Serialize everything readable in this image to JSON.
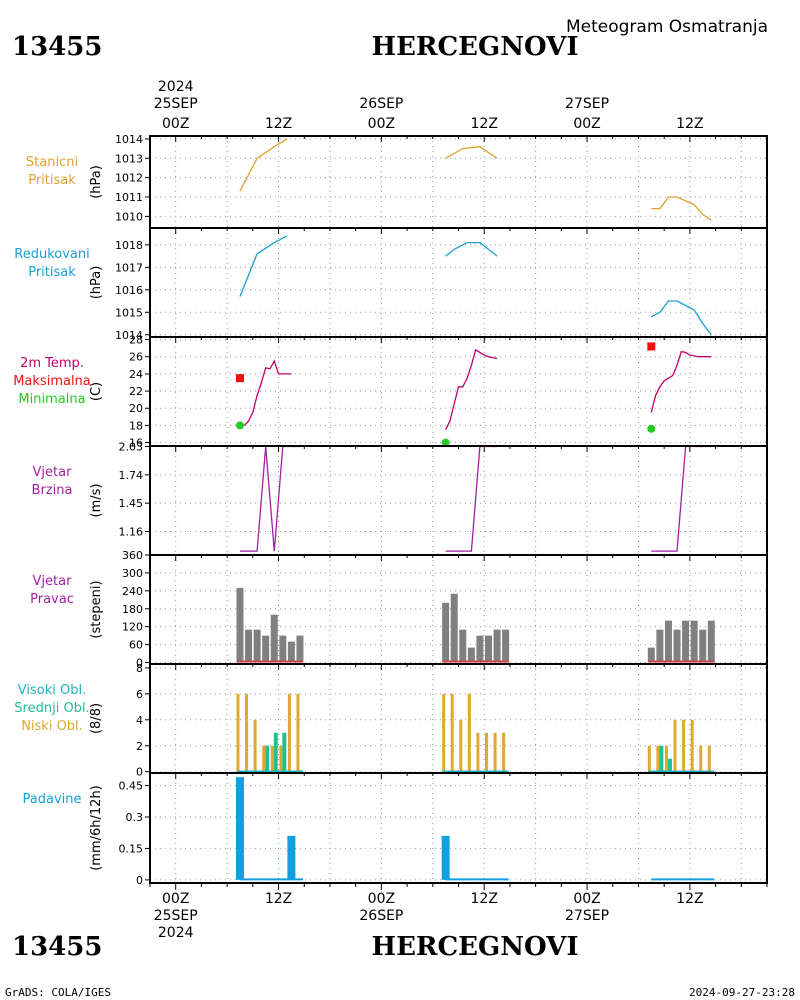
{
  "header": {
    "station_id": "13455",
    "station_name": "HERCEGNOVI",
    "subtitle": "Meteogram Osmatranja"
  },
  "top_axis": {
    "year": "2024",
    "dates": [
      "25SEP",
      "26SEP",
      "27SEP"
    ],
    "hours": [
      "00Z",
      "12Z",
      "00Z",
      "12Z",
      "00Z",
      "12Z"
    ]
  },
  "bottom_axis": {
    "year": "2024",
    "dates": [
      "25SEP",
      "26SEP",
      "27SEP"
    ],
    "hours": [
      "00Z",
      "12Z",
      "00Z",
      "12Z",
      "00Z",
      "12Z"
    ]
  },
  "footer": {
    "left": "GrADS: COLA/IGES",
    "right": "2024-09-27-23:28"
  },
  "colors": {
    "station_pressure": "#e0a030",
    "reduced_pressure": "#1a9fd0",
    "temperature": "#c0006a",
    "tmax": "#ee1010",
    "tmin": "#22cc22",
    "wind": "#a020a0",
    "wind_dir_bar": "#808080",
    "wind_dir_base": "#cc4444",
    "cloud_high": "#20b0c0",
    "cloud_mid": "#20c090",
    "cloud_low": "#e0a830",
    "precip": "#10a0e0"
  },
  "chart_data": [
    {
      "id": "pressure",
      "type": "line",
      "labels": [
        "Stanicni",
        "Pritisak"
      ],
      "ylabel": "(hPa)",
      "ylim": [
        1009.4,
        1014.15
      ],
      "yticks": [
        1010,
        1011,
        1012,
        1013,
        1014
      ],
      "series": [
        {
          "segments": [
            {
              "x": [
                7.5,
                9.5,
                11.5,
                13
              ],
              "y": [
                1011.3,
                1013.0,
                1013.6,
                1014.0
              ]
            },
            {
              "x": [
                31.5,
                33.5,
                35.5,
                37.5
              ],
              "y": [
                1013.0,
                1013.5,
                1013.6,
                1013.0
              ]
            },
            {
              "x": [
                55.5,
                56.5,
                57.5,
                58.5,
                59.5,
                60.5,
                61.5,
                62.5
              ],
              "y": [
                1010.4,
                1010.4,
                1011.0,
                1011.0,
                1010.8,
                1010.6,
                1010.1,
                1009.8
              ]
            }
          ]
        }
      ]
    },
    {
      "id": "reduced",
      "type": "line",
      "labels": [
        "Redukovani",
        "Pritisak"
      ],
      "ylabel": "(hPa)",
      "ylim": [
        1013.9,
        1018.75
      ],
      "yticks": [
        1014,
        1015,
        1016,
        1017,
        1018
      ],
      "series": [
        {
          "segments": [
            {
              "x": [
                7.5,
                9.5,
                11.5,
                13
              ],
              "y": [
                1015.7,
                1017.6,
                1018.1,
                1018.4
              ]
            },
            {
              "x": [
                31.5,
                32.5,
                34,
                35.5,
                37.5
              ],
              "y": [
                1017.5,
                1017.8,
                1018.1,
                1018.1,
                1017.5
              ]
            },
            {
              "x": [
                55.5,
                56.5,
                57.5,
                58.5,
                59.5,
                60.5,
                61.5,
                62.5
              ],
              "y": [
                1014.8,
                1015.0,
                1015.5,
                1015.5,
                1015.3,
                1015.1,
                1014.5,
                1014.0
              ]
            }
          ]
        }
      ]
    },
    {
      "id": "temperature",
      "type": "line",
      "labels": [
        "2m Temp.",
        "Maksimalna",
        "Minimalna"
      ],
      "ylabel": "(C)",
      "ylim": [
        15.6,
        28.3
      ],
      "yticks": [
        16,
        18,
        20,
        22,
        24,
        26,
        28
      ],
      "series": [
        {
          "name": "2m Temp.",
          "segments": [
            {
              "x": [
                8,
                8.5,
                9,
                9.5,
                10,
                10.5,
                11,
                11.5,
                12,
                12.5,
                13,
                13.5
              ],
              "y": [
                18.0,
                18.5,
                19.5,
                21.5,
                23.0,
                24.7,
                24.6,
                25.5,
                24.0,
                24.0,
                24.0,
                24.0
              ]
            },
            {
              "x": [
                31.5,
                32,
                32.5,
                33,
                33.5,
                34,
                34.5,
                35,
                35.5,
                36,
                36.5,
                37.5
              ],
              "y": [
                17.5,
                18.5,
                20.5,
                22.5,
                22.5,
                23.5,
                25.0,
                26.8,
                26.5,
                26.2,
                26.0,
                25.8
              ]
            },
            {
              "x": [
                55.5,
                56,
                56.5,
                57,
                57.5,
                58,
                58.5,
                59,
                59.5,
                60,
                61,
                62.5
              ],
              "y": [
                19.5,
                21.5,
                22.5,
                23.2,
                23.5,
                23.8,
                25.0,
                26.6,
                26.5,
                26.2,
                26.0,
                26.0
              ]
            }
          ]
        },
        {
          "name": "Maksimalna",
          "points": [
            {
              "x": 7.5,
              "y": 23.5
            },
            {
              "x": 55.5,
              "y": 27.2
            }
          ]
        },
        {
          "name": "Minimalna",
          "points": [
            {
              "x": 7.5,
              "y": 18.0
            },
            {
              "x": 31.5,
              "y": 16.0
            },
            {
              "x": 55.5,
              "y": 17.6
            }
          ]
        }
      ]
    },
    {
      "id": "wind_speed",
      "type": "line",
      "labels": [
        "Vjetar",
        "Brzina"
      ],
      "ylabel": "(m/s)",
      "ylim": [
        0.92,
        2.035
      ],
      "yticks": [
        1.16,
        1.45,
        1.74,
        2.03
      ],
      "ytick_labels": [
        "1.16",
        "1.45",
        "1.74",
        "2.03"
      ],
      "series": [
        {
          "segments": [
            {
              "x": [
                7.5,
                9.5,
                10.5,
                11.5,
                12.5,
                14.5
              ],
              "y": [
                0.96,
                0.96,
                2.03,
                0.96,
                2.03,
                2.03
              ]
            },
            {
              "x": [
                31.5,
                34.5,
                35.5,
                37.5
              ],
              "y": [
                0.96,
                0.96,
                2.03,
                2.03
              ]
            },
            {
              "x": [
                55.5,
                58.5,
                59.5,
                62.5
              ],
              "y": [
                0.96,
                0.96,
                2.03,
                2.03
              ]
            }
          ]
        }
      ]
    },
    {
      "id": "wind_dir",
      "type": "bar",
      "labels": [
        "Vjetar",
        "Pravac"
      ],
      "ylabel": "(stepeni)",
      "ylim": [
        -5,
        360
      ],
      "yticks": [
        0,
        60,
        120,
        180,
        240,
        300,
        360
      ],
      "x": [
        7.5,
        8.5,
        9.5,
        10.5,
        11.5,
        12.5,
        13.5,
        14.5,
        31.5,
        32.5,
        33.5,
        34.5,
        35.5,
        36.5,
        37.5,
        38.5,
        55.5,
        56.5,
        57.5,
        58.5,
        59.5,
        60.5,
        61.5,
        62.5
      ],
      "values": [
        250,
        110,
        110,
        90,
        160,
        90,
        70,
        90,
        200,
        230,
        110,
        50,
        90,
        90,
        110,
        110,
        50,
        110,
        140,
        110,
        140,
        140,
        110,
        140
      ]
    },
    {
      "id": "clouds",
      "type": "bar",
      "labels": [
        "Visoki Obl.",
        "Srednji Obl.",
        "Niski Obl."
      ],
      "ylabel": "(8/8)",
      "ylim": [
        -0.1,
        8.3
      ],
      "yticks": [
        0,
        2,
        4,
        6,
        8
      ],
      "x": [
        7.5,
        8.5,
        9.5,
        10.5,
        11.5,
        12.5,
        13.5,
        14.5,
        31.5,
        32.5,
        33.5,
        34.5,
        35.5,
        36.5,
        37.5,
        38.5,
        55.5,
        56.5,
        57.5,
        58.5,
        59.5,
        60.5,
        61.5,
        62.5
      ],
      "series": [
        {
          "name": "Niski Obl.",
          "values": [
            6,
            6,
            4,
            2,
            2,
            2,
            6,
            6,
            6,
            6,
            4,
            6,
            3,
            3,
            3,
            3,
            2,
            2,
            2,
            4,
            4,
            4,
            2,
            2
          ]
        },
        {
          "name": "Srednji Obl.",
          "values": [
            0,
            0,
            0,
            2,
            3,
            3,
            0,
            0,
            0,
            0,
            0,
            0,
            0,
            0,
            0,
            0,
            0,
            2,
            1,
            0,
            0,
            0,
            0,
            0
          ]
        },
        {
          "name": "Visoki Obl.",
          "values": [
            0,
            0,
            0,
            0,
            0,
            0,
            0,
            0,
            0,
            0,
            0,
            0,
            0,
            0,
            0,
            0,
            0,
            0,
            0,
            0,
            0,
            0,
            0,
            0
          ]
        }
      ]
    },
    {
      "id": "precip",
      "type": "bar",
      "labels": [
        "Padavine"
      ],
      "ylabel": "(mm/6h/12h)",
      "ylim": [
        -0.015,
        0.51
      ],
      "yticks": [
        0,
        0.15,
        0.3,
        0.45
      ],
      "ytick_labels": [
        "0",
        "0.15",
        "0.3",
        "0.45"
      ],
      "x": [
        7.5,
        13.5,
        31.5
      ],
      "values": [
        0.49,
        0.21,
        0.21
      ],
      "trace_segments": [
        [
          7.5,
          14.5
        ],
        [
          31.5,
          38.5
        ],
        [
          55.5,
          62.5
        ]
      ]
    }
  ]
}
